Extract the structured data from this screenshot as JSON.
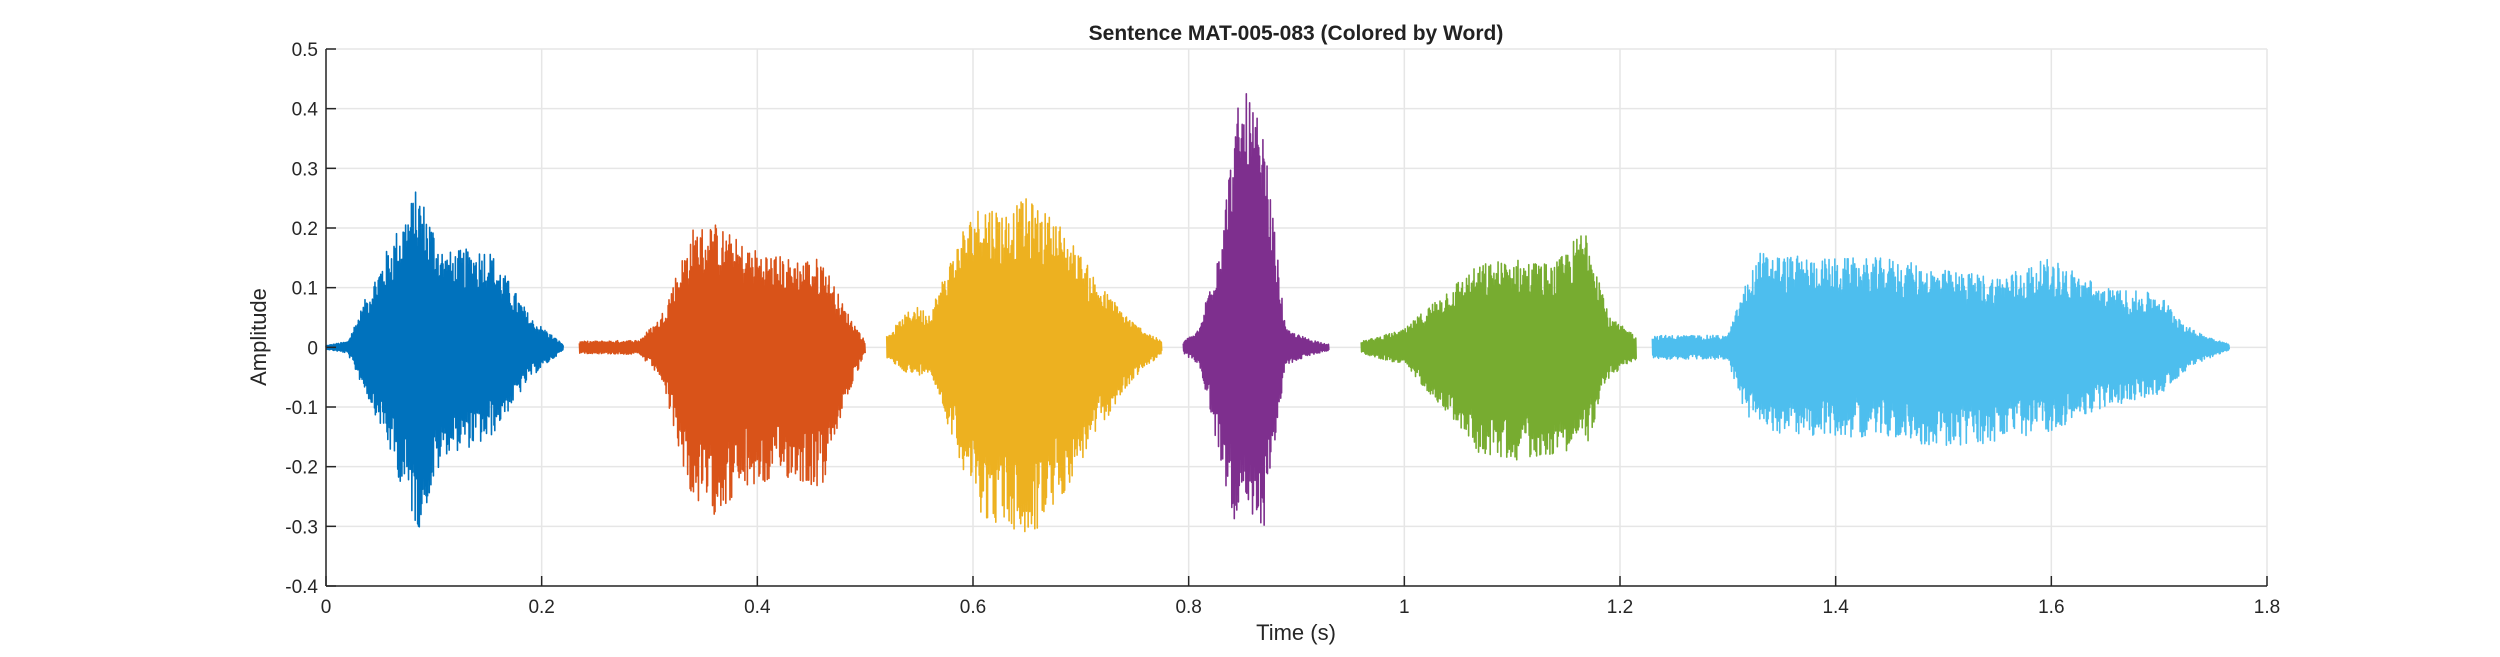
{
  "chart_data": {
    "type": "line",
    "title": "Sentence MAT-005-083 (Colored by Word)",
    "xlabel": "Time (s)",
    "ylabel": "Amplitude",
    "xlim": [
      0,
      1.8
    ],
    "ylim": [
      -0.4,
      0.5
    ],
    "x_ticks": [
      0,
      0.2,
      0.4,
      0.6,
      0.8,
      1,
      1.2,
      1.4,
      1.6,
      1.8
    ],
    "x_tick_labels": [
      "0",
      "0.2",
      "0.4",
      "0.6",
      "0.8",
      "1",
      "1.2",
      "1.4",
      "1.6",
      "1.8"
    ],
    "y_ticks": [
      -0.4,
      -0.3,
      -0.2,
      -0.1,
      0,
      0.1,
      0.2,
      0.3,
      0.4,
      0.5
    ],
    "y_tick_labels": [
      "-0.4",
      "-0.3",
      "-0.2",
      "-0.1",
      "0",
      "0.1",
      "0.2",
      "0.3",
      "0.4",
      "0.5"
    ],
    "grid": true,
    "legend": "none",
    "series": [
      {
        "color": "#0072BD",
        "t_start": 0.0,
        "t_end": 0.22,
        "envelope_t": [
          0.0,
          0.02,
          0.05,
          0.085,
          0.11,
          0.15,
          0.19,
          0.22
        ],
        "envelope_max": [
          0.003,
          0.01,
          0.14,
          0.27,
          0.16,
          0.17,
          0.05,
          0.005
        ],
        "envelope_min": [
          -0.003,
          -0.01,
          -0.13,
          -0.31,
          -0.18,
          -0.16,
          -0.05,
          -0.005
        ]
      },
      {
        "color": "#D95319",
        "t_start": 0.235,
        "t_end": 0.5,
        "envelope_t": [
          0.235,
          0.29,
          0.31,
          0.34,
          0.36,
          0.39,
          0.43,
          0.46,
          0.48,
          0.5
        ],
        "envelope_max": [
          0.01,
          0.012,
          0.05,
          0.2,
          0.21,
          0.17,
          0.15,
          0.15,
          0.07,
          0.01
        ],
        "envelope_min": [
          -0.01,
          -0.012,
          -0.05,
          -0.26,
          -0.28,
          -0.24,
          -0.22,
          -0.24,
          -0.1,
          -0.01
        ]
      },
      {
        "color": "#EDB120",
        "t_start": 0.52,
        "t_end": 0.775,
        "envelope_t": [
          0.52,
          0.545,
          0.56,
          0.59,
          0.61,
          0.63,
          0.65,
          0.68,
          0.72,
          0.75,
          0.775
        ],
        "envelope_max": [
          0.02,
          0.07,
          0.06,
          0.2,
          0.25,
          0.23,
          0.25,
          0.21,
          0.1,
          0.04,
          0.01
        ],
        "envelope_min": [
          -0.02,
          -0.05,
          -0.04,
          -0.2,
          -0.29,
          -0.3,
          -0.33,
          -0.26,
          -0.13,
          -0.05,
          -0.01
        ]
      },
      {
        "color": "#7E2F8E",
        "t_start": 0.795,
        "t_end": 0.93,
        "envelope_t": [
          0.795,
          0.81,
          0.83,
          0.845,
          0.855,
          0.87,
          0.89,
          0.91,
          0.93
        ],
        "envelope_max": [
          0.01,
          0.03,
          0.2,
          0.4,
          0.43,
          0.35,
          0.03,
          0.015,
          0.005
        ],
        "envelope_min": [
          -0.01,
          -0.03,
          -0.2,
          -0.31,
          -0.31,
          -0.3,
          -0.03,
          -0.015,
          -0.005
        ]
      },
      {
        "color": "#77AC30",
        "t_start": 0.96,
        "t_end": 1.215,
        "envelope_t": [
          0.96,
          1.0,
          1.04,
          1.07,
          1.1,
          1.14,
          1.17,
          1.19,
          1.215
        ],
        "envelope_max": [
          0.01,
          0.03,
          0.1,
          0.14,
          0.15,
          0.14,
          0.21,
          0.05,
          0.02
        ],
        "envelope_min": [
          -0.01,
          -0.03,
          -0.11,
          -0.18,
          -0.19,
          -0.18,
          -0.16,
          -0.05,
          -0.02
        ]
      },
      {
        "color": "#4DBEEE",
        "t_start": 1.23,
        "t_end": 1.765,
        "envelope_t": [
          1.23,
          1.3,
          1.315,
          1.33,
          1.38,
          1.45,
          1.5,
          1.55,
          1.6,
          1.65,
          1.7,
          1.73,
          1.765
        ],
        "envelope_max": [
          0.02,
          0.02,
          0.1,
          0.16,
          0.15,
          0.15,
          0.13,
          0.12,
          0.15,
          0.1,
          0.09,
          0.03,
          0.005
        ],
        "envelope_min": [
          -0.02,
          -0.02,
          -0.11,
          -0.14,
          -0.15,
          -0.15,
          -0.17,
          -0.16,
          -0.14,
          -0.1,
          -0.08,
          -0.03,
          -0.005
        ]
      }
    ]
  }
}
